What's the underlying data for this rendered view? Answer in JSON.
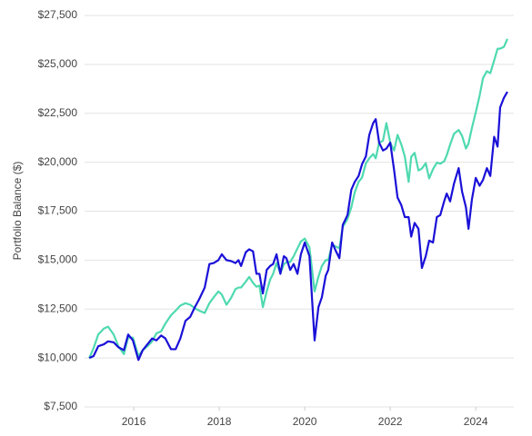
{
  "chart_data": {
    "type": "line",
    "ylabel": "Portfolio Balance ($)",
    "xlim": [
      2014.85,
      2024.89
    ],
    "xticks": [
      2016,
      2018,
      2020,
      2022,
      2024
    ],
    "ylim": [
      7500,
      27500
    ],
    "yticks": [
      {
        "value": 7500,
        "label": "$7,500"
      },
      {
        "value": 10000,
        "label": "$10,000"
      },
      {
        "value": 12500,
        "label": "$12,500"
      },
      {
        "value": 15000,
        "label": "$15,000"
      },
      {
        "value": 17500,
        "label": "$17,500"
      },
      {
        "value": 20000,
        "label": "$20,000"
      },
      {
        "value": 22500,
        "label": "$22,500"
      },
      {
        "value": 25000,
        "label": "$25,000"
      },
      {
        "value": 27500,
        "label": "$27,500"
      }
    ],
    "grid": true,
    "x": [
      2014.96,
      2015.06,
      2015.17,
      2015.3,
      2015.4,
      2015.53,
      2015.64,
      2015.77,
      2015.87,
      2015.98,
      2016.11,
      2016.21,
      2016.32,
      2016.43,
      2016.53,
      2016.64,
      2016.74,
      2016.87,
      2016.98,
      2017.09,
      2017.21,
      2017.32,
      2017.43,
      2017.53,
      2017.66,
      2017.77,
      2017.87,
      2017.98,
      2018.06,
      2018.17,
      2018.28,
      2018.38,
      2018.45,
      2018.51,
      2018.62,
      2018.7,
      2018.79,
      2018.87,
      2018.94,
      2019.02,
      2019.11,
      2019.19,
      2019.26,
      2019.34,
      2019.43,
      2019.51,
      2019.57,
      2019.66,
      2019.74,
      2019.83,
      2019.91,
      2020.0,
      2020.11,
      2020.23,
      2020.32,
      2020.4,
      2020.49,
      2020.55,
      2020.64,
      2020.72,
      2020.81,
      2020.89,
      2021.0,
      2021.09,
      2021.17,
      2021.26,
      2021.34,
      2021.43,
      2021.51,
      2021.6,
      2021.66,
      2021.74,
      2021.83,
      2021.91,
      2022.0,
      2022.09,
      2022.17,
      2022.26,
      2022.34,
      2022.43,
      2022.49,
      2022.57,
      2022.66,
      2022.74,
      2022.83,
      2022.91,
      2023.0,
      2023.09,
      2023.17,
      2023.26,
      2023.32,
      2023.4,
      2023.49,
      2023.6,
      2023.68,
      2023.77,
      2023.83,
      2023.91,
      2024.0,
      2024.09,
      2024.17,
      2024.26,
      2024.34,
      2024.43,
      2024.51,
      2024.57,
      2024.66,
      2024.74
    ],
    "series": [
      {
        "color": "#1a10d8",
        "values": [
          10000,
          10100,
          10600,
          10700,
          10850,
          10800,
          10550,
          10400,
          11200,
          10900,
          9900,
          10400,
          10700,
          11000,
          10900,
          11150,
          11000,
          10450,
          10450,
          11000,
          11900,
          12100,
          12600,
          13000,
          13600,
          14800,
          14850,
          15000,
          15300,
          15000,
          14950,
          14850,
          15000,
          14700,
          15400,
          15550,
          15450,
          14300,
          14300,
          13300,
          14500,
          14700,
          14800,
          15300,
          14300,
          15200,
          15100,
          14500,
          14800,
          14300,
          15300,
          15900,
          15200,
          10900,
          12600,
          13100,
          14200,
          14500,
          15900,
          15500,
          15100,
          16800,
          17300,
          18600,
          19000,
          19300,
          19900,
          20300,
          21400,
          22000,
          22200,
          21000,
          20600,
          20700,
          21000,
          19600,
          18200,
          17800,
          17200,
          17200,
          16200,
          16900,
          16600,
          14600,
          15200,
          16000,
          15900,
          17200,
          17300,
          18000,
          18400,
          18000,
          18900,
          19700,
          18500,
          17700,
          16600,
          18100,
          19200,
          18800,
          19100,
          19700,
          19300,
          21300,
          20800,
          22800,
          23300,
          23600
        ]
      },
      {
        "color": "#4fd9b0",
        "values": [
          10000,
          10500,
          11200,
          11500,
          11600,
          11200,
          10600,
          10200,
          11050,
          11040,
          10100,
          10400,
          10600,
          10850,
          11260,
          11360,
          11760,
          12180,
          12420,
          12680,
          12800,
          12720,
          12540,
          12420,
          12300,
          12800,
          13100,
          13400,
          13240,
          12720,
          13080,
          13520,
          13600,
          13600,
          13900,
          14140,
          13840,
          13640,
          13700,
          12600,
          13400,
          14000,
          14300,
          14850,
          14320,
          14780,
          14900,
          14900,
          15200,
          15600,
          15950,
          16100,
          15650,
          13400,
          14150,
          14700,
          15000,
          15000,
          15800,
          15700,
          15600,
          16700,
          17100,
          17700,
          18470,
          19000,
          19220,
          19950,
          20200,
          20420,
          20200,
          21000,
          21100,
          22000,
          21000,
          20600,
          21400,
          20900,
          20300,
          19000,
          20280,
          20480,
          19580,
          19680,
          19950,
          19170,
          19650,
          19980,
          19930,
          20050,
          20350,
          20900,
          21450,
          21650,
          21350,
          20700,
          20950,
          21750,
          22550,
          23400,
          24300,
          24650,
          24550,
          25200,
          25800,
          25800,
          25900,
          26300
        ]
      }
    ]
  }
}
